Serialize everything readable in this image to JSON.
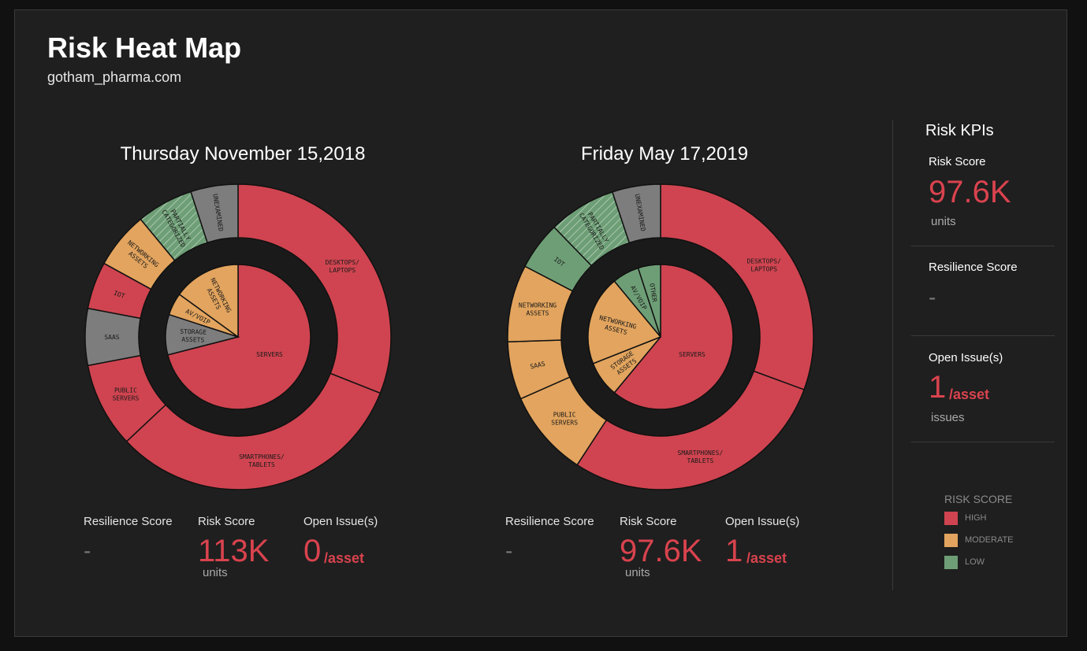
{
  "header": {
    "title": "Risk Heat Map",
    "subtitle": "gotham_pharma.com"
  },
  "colors": {
    "high": "#cf4450",
    "moderate": "#e2a45e",
    "low": "#6e9e76",
    "unexamined": "#7d7d7d",
    "background": "#1f1f1f"
  },
  "chart_data": [
    {
      "type": "pie",
      "title": "Thursday November 15,2018",
      "outer_ring": [
        {
          "label": "DESKTOPS/ LAPTOPS",
          "value": 31,
          "risk": "high"
        },
        {
          "label": "SMARTPHONES/ TABLETS",
          "value": 32,
          "risk": "high"
        },
        {
          "label": "PUBLIC SERVERS",
          "value": 9,
          "risk": "high"
        },
        {
          "label": "SAAS",
          "value": 6,
          "risk": "unexamined"
        },
        {
          "label": "IOT",
          "value": 5,
          "risk": "high"
        },
        {
          "label": "NETWORKING ASSETS",
          "value": 6,
          "risk": "moderate"
        },
        {
          "label": "PARTIALLY CATEGORIZED",
          "value": 6,
          "risk": "low",
          "hatched": true
        },
        {
          "label": "UNEXAMINED",
          "value": 5,
          "risk": "unexamined"
        }
      ],
      "inner_pie": [
        {
          "label": "SERVERS",
          "value": 71,
          "risk": "high"
        },
        {
          "label": "STORAGE ASSETS",
          "value": 9,
          "risk": "unexamined"
        },
        {
          "label": "AV/VOIP",
          "value": 5,
          "risk": "moderate"
        },
        {
          "label": "NETWORKING ASSETS",
          "value": 15,
          "risk": "moderate"
        }
      ],
      "stats": {
        "resilience_label": "Resilience Score",
        "resilience_value": "-",
        "risk_label": "Risk Score",
        "risk_value": "113K",
        "risk_unit": "units",
        "issues_label": "Open Issue(s)",
        "issues_value": "0",
        "issues_unit": "/asset"
      }
    },
    {
      "type": "pie",
      "title": "Friday May 17,2019",
      "outer_ring": [
        {
          "label": "DESKTOPS/ LAPTOPS",
          "value": 30,
          "risk": "high"
        },
        {
          "label": "SMARTPHONES/ TABLETS",
          "value": 28,
          "risk": "high"
        },
        {
          "label": "PUBLIC SERVERS",
          "value": 9,
          "risk": "moderate"
        },
        {
          "label": "SAAS",
          "value": 6,
          "risk": "moderate"
        },
        {
          "label": "NETWORKING ASSETS",
          "value": 8,
          "risk": "moderate"
        },
        {
          "label": "IOT",
          "value": 5,
          "risk": "low"
        },
        {
          "label": "PARTIALLY CATEGORIZED",
          "value": 7,
          "risk": "low",
          "hatched": true
        },
        {
          "label": "UNEXAMINED",
          "value": 5,
          "risk": "unexamined"
        }
      ],
      "inner_pie": [
        {
          "label": "SERVERS",
          "value": 61,
          "risk": "high"
        },
        {
          "label": "STORAGE ASSETS",
          "value": 8,
          "risk": "moderate"
        },
        {
          "label": "NETWORKING ASSETS",
          "value": 20,
          "risk": "moderate"
        },
        {
          "label": "AV/VOIP",
          "value": 6,
          "risk": "low"
        },
        {
          "label": "OTHER",
          "value": 5,
          "risk": "low"
        }
      ],
      "stats": {
        "resilience_label": "Resilience Score",
        "resilience_value": "-",
        "risk_label": "Risk Score",
        "risk_value": "97.6K",
        "risk_unit": "units",
        "issues_label": "Open Issue(s)",
        "issues_value": "1",
        "issues_unit": "/asset"
      }
    }
  ],
  "kpis": {
    "title": "Risk KPIs",
    "risk_label": "Risk Score",
    "risk_value": "97.6K",
    "risk_unit": "units",
    "resilience_label": "Resilience Score",
    "resilience_value": "-",
    "issues_label": "Open Issue(s)",
    "issues_value": "1",
    "issues_asset": "/asset",
    "issues_unit": "issues"
  },
  "legend": {
    "title": "RISK SCORE",
    "items": [
      {
        "label": "HIGH",
        "color": "#cf4450"
      },
      {
        "label": "MODERATE",
        "color": "#e2a45e"
      },
      {
        "label": "LOW",
        "color": "#6e9e76"
      }
    ]
  }
}
